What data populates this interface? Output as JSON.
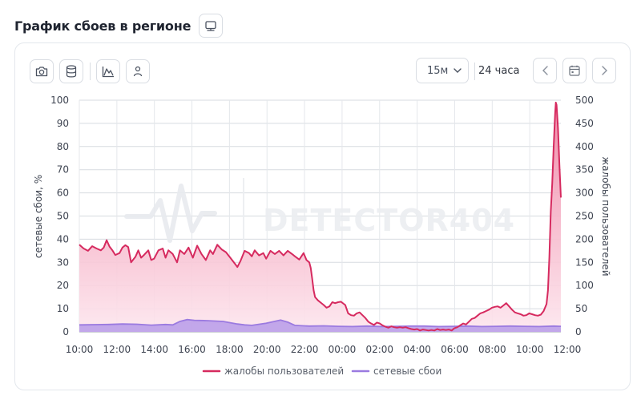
{
  "header": {
    "title": "График сбоев в регионе",
    "title_button_icon": "monitor-icon"
  },
  "toolbar": {
    "icons": [
      "camera-icon",
      "database-icon",
      "chart-icon",
      "user-icon"
    ],
    "interval": "15м",
    "range": "24 часа",
    "nav_icons": [
      "chevron-left-icon",
      "calendar-icon",
      "chevron-right-icon"
    ]
  },
  "watermark": "DETECTOR404",
  "colors": {
    "complaints": "#d62a5f",
    "complaints_fill_top": "#ef86a5",
    "complaints_fill_bottom": "#fde6ee",
    "outages": "#9b7ae0",
    "outages_fill": "#b79be9"
  },
  "chart_data": {
    "type": "area",
    "title": "",
    "xlabel": "",
    "ylabel_left": "сетевые сбои, %",
    "ylabel_right": "жалобы пользователей",
    "ylim_left": [
      0,
      100
    ],
    "ylim_right": [
      0,
      500
    ],
    "yticks_left": [
      "0",
      "10",
      "20",
      "30",
      "40",
      "50",
      "60",
      "70",
      "80",
      "90",
      "100"
    ],
    "yticks_right": [
      "0",
      "50",
      "100",
      "150",
      "200",
      "250",
      "300",
      "350",
      "400",
      "450",
      "500"
    ],
    "xticks": [
      "10:00",
      "12:00",
      "14:00",
      "16:00",
      "18:00",
      "20:00",
      "22:00",
      "00:00",
      "02:00",
      "04:00",
      "06:00",
      "08:00",
      "10:00",
      "12:00"
    ],
    "x_hours": [
      0,
      26
    ],
    "grid": true,
    "legend_position": "bottom",
    "series": [
      {
        "name": "жалобы пользователей",
        "axis": "right",
        "points": [
          [
            0,
            188
          ],
          [
            0.3,
            180
          ],
          [
            0.6,
            175
          ],
          [
            0.9,
            185
          ],
          [
            1.2,
            180
          ],
          [
            1.5,
            176
          ],
          [
            1.7,
            182
          ],
          [
            1.9,
            198
          ],
          [
            2.1,
            184
          ],
          [
            2.3,
            176
          ],
          [
            2.5,
            166
          ],
          [
            2.8,
            170
          ],
          [
            3.0,
            182
          ],
          [
            3.2,
            187
          ],
          [
            3.4,
            183
          ],
          [
            3.6,
            150
          ],
          [
            3.9,
            162
          ],
          [
            4.1,
            176
          ],
          [
            4.3,
            160
          ],
          [
            4.5,
            166
          ],
          [
            4.8,
            176
          ],
          [
            5.0,
            155
          ],
          [
            5.2,
            158
          ],
          [
            5.5,
            176
          ],
          [
            5.8,
            180
          ],
          [
            6.0,
            160
          ],
          [
            6.2,
            176
          ],
          [
            6.5,
            168
          ],
          [
            6.8,
            150
          ],
          [
            7.0,
            176
          ],
          [
            7.3,
            168
          ],
          [
            7.6,
            182
          ],
          [
            7.9,
            160
          ],
          [
            8.2,
            186
          ],
          [
            8.5,
            168
          ],
          [
            8.8,
            155
          ],
          [
            9.1,
            176
          ],
          [
            9.3,
            168
          ],
          [
            9.6,
            188
          ],
          [
            9.9,
            178
          ],
          [
            10.2,
            172
          ],
          [
            10.5,
            160
          ],
          [
            10.8,
            148
          ],
          [
            11.0,
            140
          ],
          [
            11.2,
            152
          ],
          [
            11.5,
            175
          ],
          [
            11.8,
            170
          ],
          [
            12.0,
            163
          ],
          [
            12.2,
            176
          ],
          [
            12.5,
            165
          ],
          [
            12.8,
            170
          ],
          [
            13.0,
            158
          ],
          [
            13.3,
            175
          ],
          [
            13.6,
            168
          ],
          [
            13.9,
            175
          ],
          [
            14.2,
            165
          ],
          [
            14.5,
            175
          ],
          [
            14.8,
            168
          ],
          [
            15.0,
            163
          ],
          [
            15.3,
            156
          ],
          [
            15.6,
            170
          ],
          [
            15.8,
            155
          ],
          [
            16.0,
            150
          ],
          [
            16.1,
            138
          ],
          [
            16.2,
            115
          ],
          [
            16.3,
            90
          ],
          [
            16.4,
            75
          ],
          [
            16.6,
            68
          ],
          [
            16.8,
            63
          ],
          [
            17.0,
            58
          ],
          [
            17.2,
            52
          ],
          [
            17.4,
            55
          ],
          [
            17.6,
            64
          ],
          [
            17.8,
            62
          ],
          [
            18.0,
            64
          ],
          [
            18.2,
            65
          ],
          [
            18.5,
            58
          ],
          [
            18.7,
            40
          ],
          [
            18.9,
            36
          ],
          [
            19.1,
            35
          ],
          [
            19.3,
            40
          ],
          [
            19.5,
            42
          ],
          [
            19.7,
            36
          ],
          [
            19.9,
            30
          ],
          [
            20.1,
            22
          ],
          [
            20.3,
            18
          ],
          [
            20.5,
            15
          ],
          [
            20.7,
            20
          ],
          [
            20.9,
            18
          ],
          [
            21.1,
            14
          ],
          [
            21.3,
            11
          ],
          [
            21.5,
            9
          ],
          [
            21.7,
            12
          ],
          [
            21.9,
            10
          ],
          [
            22.1,
            9
          ],
          [
            22.3,
            10
          ],
          [
            22.5,
            9
          ],
          [
            22.7,
            10
          ],
          [
            22.9,
            8
          ],
          [
            23.1,
            6
          ],
          [
            23.3,
            5
          ],
          [
            23.5,
            6
          ],
          [
            23.7,
            3
          ],
          [
            23.9,
            5
          ],
          [
            24.1,
            4
          ],
          [
            24.3,
            3
          ],
          [
            24.5,
            4
          ],
          [
            24.7,
            3
          ],
          [
            24.9,
            6
          ],
          [
            25.1,
            4
          ],
          [
            25.3,
            5
          ],
          [
            25.5,
            4
          ],
          [
            25.7,
            5
          ],
          [
            25.9,
            3
          ],
          [
            26.1,
            8
          ],
          [
            26.3,
            10
          ],
          [
            26.5,
            14
          ],
          [
            26.7,
            18
          ],
          [
            26.9,
            16
          ],
          [
            27.1,
            22
          ],
          [
            27.3,
            28
          ],
          [
            27.5,
            30
          ],
          [
            27.7,
            35
          ],
          [
            27.9,
            40
          ],
          [
            28.1,
            42
          ],
          [
            28.3,
            45
          ],
          [
            28.5,
            48
          ],
          [
            28.7,
            52
          ],
          [
            28.9,
            54
          ],
          [
            29.1,
            55
          ],
          [
            29.3,
            52
          ],
          [
            29.5,
            57
          ],
          [
            29.7,
            62
          ],
          [
            29.9,
            55
          ],
          [
            30.1,
            48
          ],
          [
            30.3,
            42
          ],
          [
            30.5,
            40
          ],
          [
            30.7,
            38
          ],
          [
            30.9,
            35
          ],
          [
            31.1,
            36
          ],
          [
            31.3,
            40
          ],
          [
            31.5,
            38
          ],
          [
            31.7,
            36
          ],
          [
            31.9,
            35
          ],
          [
            32.1,
            37
          ],
          [
            32.3,
            45
          ],
          [
            32.5,
            60
          ],
          [
            32.6,
            90
          ],
          [
            32.7,
            160
          ],
          [
            32.8,
            260
          ],
          [
            32.9,
            320
          ],
          [
            33.0,
            400
          ],
          [
            33.1,
            470
          ],
          [
            33.15,
            495
          ],
          [
            33.2,
            490
          ],
          [
            33.3,
            440
          ],
          [
            33.4,
            360
          ],
          [
            33.5,
            290
          ]
        ]
      },
      {
        "name": "сетевые сбои",
        "axis": "left",
        "points": [
          [
            0,
            3.0
          ],
          [
            2,
            3.2
          ],
          [
            3,
            3.4
          ],
          [
            4,
            3.3
          ],
          [
            5,
            2.9
          ],
          [
            6,
            3.2
          ],
          [
            6.5,
            3.0
          ],
          [
            7,
            4.5
          ],
          [
            7.5,
            5.3
          ],
          [
            8,
            5.0
          ],
          [
            9,
            4.8
          ],
          [
            10,
            4.5
          ],
          [
            11,
            3.4
          ],
          [
            11.5,
            3.0
          ],
          [
            12,
            2.8
          ],
          [
            13,
            3.7
          ],
          [
            14,
            5.1
          ],
          [
            14.5,
            4.2
          ],
          [
            15,
            2.8
          ],
          [
            16,
            2.5
          ],
          [
            17,
            2.6
          ],
          [
            18,
            2.4
          ],
          [
            19,
            2.3
          ],
          [
            20,
            2.5
          ],
          [
            21,
            2.3
          ],
          [
            22,
            2.4
          ],
          [
            23,
            2.5
          ],
          [
            24,
            2.5
          ],
          [
            25,
            2.3
          ],
          [
            26,
            2.4
          ],
          [
            27,
            2.5
          ],
          [
            28,
            2.3
          ],
          [
            29,
            2.4
          ],
          [
            30,
            2.5
          ],
          [
            31,
            2.4
          ],
          [
            32,
            2.3
          ],
          [
            33,
            2.5
          ],
          [
            33.5,
            2.4
          ]
        ]
      }
    ]
  }
}
